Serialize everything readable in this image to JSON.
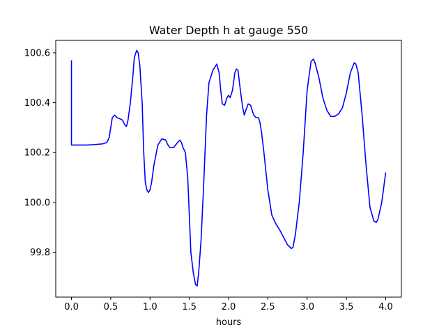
{
  "chart_data": {
    "type": "line",
    "title": "Water Depth h at gauge 550",
    "xlabel": "hours",
    "ylabel": "",
    "xlim": [
      -0.2,
      4.2
    ],
    "ylim": [
      99.62,
      100.65
    ],
    "xticks": [
      0.0,
      0.5,
      1.0,
      1.5,
      2.0,
      2.5,
      3.0,
      3.5,
      4.0
    ],
    "xtick_labels": [
      "0.0",
      "0.5",
      "1.0",
      "1.5",
      "2.0",
      "2.5",
      "3.0",
      "3.5",
      "4.0"
    ],
    "yticks": [
      99.8,
      100.0,
      100.2,
      100.4,
      100.6
    ],
    "ytick_labels": [
      "99.8",
      "100.0",
      "100.2",
      "100.4",
      "100.6"
    ],
    "grid": false,
    "series": [
      {
        "color": "#0000ff",
        "x": [
          0.0,
          0.0,
          0.0,
          0.1,
          0.2,
          0.3,
          0.4,
          0.45,
          0.48,
          0.5,
          0.52,
          0.55,
          0.58,
          0.62,
          0.65,
          0.68,
          0.7,
          0.72,
          0.75,
          0.78,
          0.8,
          0.83,
          0.85,
          0.87,
          0.9,
          0.92,
          0.94,
          0.96,
          0.98,
          1.0,
          1.02,
          1.05,
          1.1,
          1.15,
          1.2,
          1.22,
          1.25,
          1.3,
          1.35,
          1.38,
          1.4,
          1.42,
          1.45,
          1.48,
          1.5,
          1.52,
          1.55,
          1.58,
          1.6,
          1.62,
          1.65,
          1.68,
          1.7,
          1.72,
          1.75,
          1.8,
          1.85,
          1.88,
          1.9,
          1.92,
          1.95,
          1.98,
          2.0,
          2.02,
          2.05,
          2.08,
          2.1,
          2.12,
          2.15,
          2.18,
          2.2,
          2.22,
          2.25,
          2.28,
          2.3,
          2.32,
          2.35,
          2.38,
          2.4,
          2.42,
          2.45,
          2.5,
          2.55,
          2.6,
          2.65,
          2.7,
          2.75,
          2.8,
          2.82,
          2.85,
          2.9,
          2.95,
          3.0,
          3.05,
          3.08,
          3.1,
          3.15,
          3.2,
          3.25,
          3.3,
          3.35,
          3.4,
          3.45,
          3.5,
          3.55,
          3.6,
          3.62,
          3.65,
          3.7,
          3.75,
          3.8,
          3.85,
          3.88,
          3.9,
          3.95,
          4.0
        ],
        "y": [
          100.57,
          100.4,
          100.23,
          100.23,
          100.23,
          100.232,
          100.235,
          100.24,
          100.26,
          100.3,
          100.34,
          100.35,
          100.34,
          100.335,
          100.33,
          100.31,
          100.305,
          100.33,
          100.4,
          100.5,
          100.58,
          100.61,
          100.6,
          100.55,
          100.4,
          100.2,
          100.08,
          100.05,
          100.04,
          100.05,
          100.08,
          100.15,
          100.23,
          100.255,
          100.25,
          100.235,
          100.22,
          100.22,
          100.24,
          100.25,
          100.24,
          100.22,
          100.2,
          100.1,
          99.95,
          99.8,
          99.72,
          99.67,
          99.665,
          99.72,
          99.85,
          100.05,
          100.2,
          100.35,
          100.48,
          100.53,
          100.555,
          100.52,
          100.45,
          100.395,
          100.39,
          100.42,
          100.43,
          100.42,
          100.45,
          100.52,
          100.535,
          100.53,
          100.45,
          100.38,
          100.35,
          100.37,
          100.395,
          100.39,
          100.37,
          100.35,
          100.34,
          100.34,
          100.32,
          100.28,
          100.2,
          100.05,
          99.95,
          99.915,
          99.89,
          99.86,
          99.83,
          99.815,
          99.82,
          99.87,
          100.0,
          100.2,
          100.45,
          100.565,
          100.575,
          100.56,
          100.5,
          100.42,
          100.37,
          100.345,
          100.345,
          100.355,
          100.38,
          100.44,
          100.52,
          100.56,
          100.555,
          100.52,
          100.35,
          100.15,
          99.98,
          99.925,
          99.92,
          99.93,
          100.0,
          100.12
        ]
      }
    ]
  }
}
